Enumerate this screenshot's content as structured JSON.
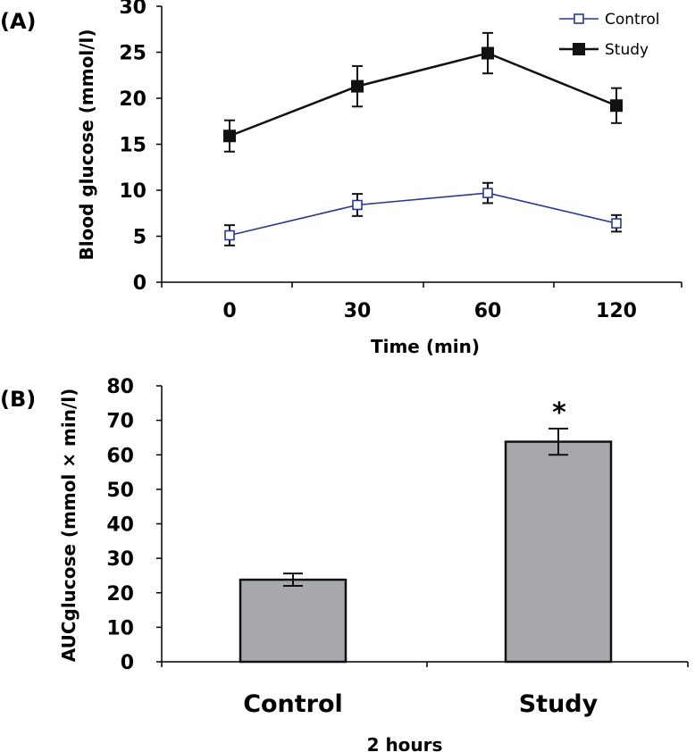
{
  "chart_data": [
    {
      "panel": "(A)",
      "type": "line",
      "x": [
        0,
        30,
        60,
        120
      ],
      "xlabel": "Time (min)",
      "ylabel": "Blood glucose (mmol/l)",
      "ylim": [
        0,
        30
      ],
      "yticks": [
        0,
        5,
        10,
        15,
        20,
        25,
        30
      ],
      "xtick_labels": [
        "0",
        "30",
        "60",
        "120"
      ],
      "legend_position": "top-right",
      "grid": false,
      "series": [
        {
          "name": "Control",
          "marker": "open-square",
          "color": "#2a3a8c",
          "values": [
            5.1,
            8.4,
            9.7,
            6.4
          ],
          "errors": [
            1.1,
            1.2,
            1.1,
            0.9
          ]
        },
        {
          "name": "Study",
          "marker": "filled-square",
          "color": "#111111",
          "values": [
            15.9,
            21.3,
            24.9,
            19.2
          ],
          "errors": [
            1.7,
            2.2,
            2.2,
            1.9
          ]
        }
      ]
    },
    {
      "panel": "(B)",
      "type": "bar",
      "categories": [
        "Control",
        "Study"
      ],
      "values": [
        23.8,
        63.8
      ],
      "errors": [
        1.8,
        3.8
      ],
      "significance": [
        "",
        "*"
      ],
      "xlabel": "2 hours",
      "ylabel": "AUCglucose (mmol × min/l)",
      "ylim": [
        0,
        80
      ],
      "yticks": [
        0,
        10,
        20,
        30,
        40,
        50,
        60,
        70,
        80
      ],
      "bar_color": "#a6a8ab",
      "grid": false
    }
  ]
}
